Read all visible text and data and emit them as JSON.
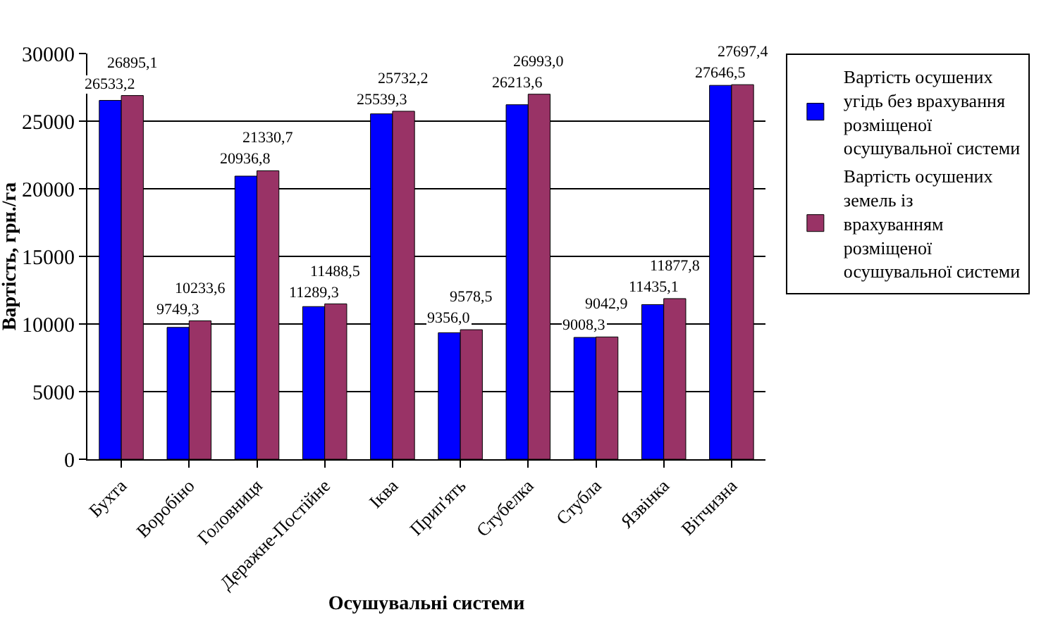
{
  "chart_data": {
    "type": "bar",
    "xlabel": "Осушувальні системи",
    "ylabel": "Вартість, грн./га",
    "categories": [
      "Бухта",
      "Воробіно",
      "Головниця",
      "Деражне-Постійне",
      "Іква",
      "Прип'ять",
      "Стубелка",
      "Стубла",
      "Язвінка",
      "Вітчизна"
    ],
    "series": [
      {
        "name": "Вартість осушених угідь без врахування розміщеної осушувальної системи",
        "color": "#0000ff",
        "values": [
          26533.2,
          9749.3,
          20936.8,
          11289.3,
          25539.3,
          9356.0,
          26213.6,
          9008.3,
          11435.1,
          27646.5
        ],
        "value_labels": [
          "26533,2",
          "9749,3",
          "20936,8",
          "11289,3",
          "25539,3",
          "9356,0",
          "26213,6",
          "9008,3",
          "11435,1",
          "27646,5"
        ]
      },
      {
        "name": "Вартість осушених земель із врахуванням розміщеної осушувальної системи",
        "color": "#993366",
        "values": [
          26895.1,
          10233.6,
          21330.7,
          11488.5,
          25732.2,
          9578.5,
          26993.0,
          9042.9,
          11877.8,
          27697.4
        ],
        "value_labels": [
          "26895,1",
          "10233,6",
          "21330,7",
          "11488,5",
          "25732,2",
          "9578,5",
          "26993,0",
          "9042,9",
          "11877,8",
          "27697,4"
        ]
      }
    ],
    "ylim": [
      0,
      30000
    ],
    "yticks": [
      0,
      5000,
      10000,
      15000,
      20000,
      25000,
      30000
    ],
    "grid": "y",
    "legend": "right"
  }
}
